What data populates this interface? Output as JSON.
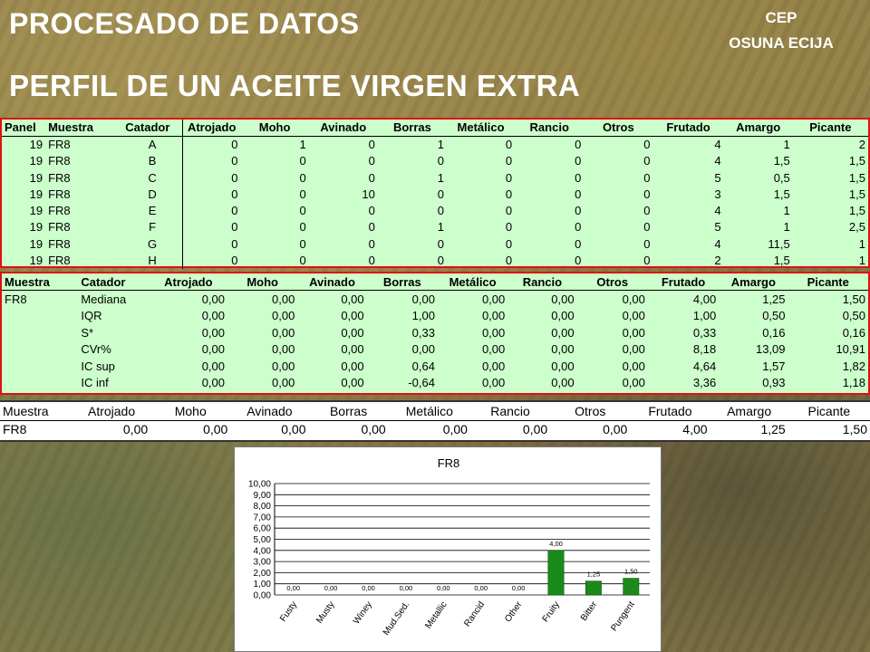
{
  "header": {
    "title": "PROCESADO DE DATOS",
    "subtitle": "PERFIL DE UN ACEITE VIRGEN EXTRA",
    "org_line1": "CEP",
    "org_line2": "OSUNA ECIJA"
  },
  "panel_table": {
    "headers": [
      "Panel",
      "Muestra",
      "Catador",
      "Atrojado",
      "Moho",
      "Avinado",
      "Borras",
      "Metálico",
      "Rancio",
      "Otros",
      "Frutado",
      "Amargo",
      "Picante"
    ],
    "rows": [
      [
        "19",
        "FR8",
        "A",
        "0",
        "1",
        "0",
        "1",
        "0",
        "0",
        "0",
        "4",
        "1",
        "2"
      ],
      [
        "19",
        "FR8",
        "B",
        "0",
        "0",
        "0",
        "0",
        "0",
        "0",
        "0",
        "4",
        "1,5",
        "1,5"
      ],
      [
        "19",
        "FR8",
        "C",
        "0",
        "0",
        "0",
        "1",
        "0",
        "0",
        "0",
        "5",
        "0,5",
        "1,5"
      ],
      [
        "19",
        "FR8",
        "D",
        "0",
        "0",
        "10",
        "0",
        "0",
        "0",
        "0",
        "3",
        "1,5",
        "1,5"
      ],
      [
        "19",
        "FR8",
        "E",
        "0",
        "0",
        "0",
        "0",
        "0",
        "0",
        "0",
        "4",
        "1",
        "1,5"
      ],
      [
        "19",
        "FR8",
        "F",
        "0",
        "0",
        "0",
        "1",
        "0",
        "0",
        "0",
        "5",
        "1",
        "2,5"
      ],
      [
        "19",
        "FR8",
        "G",
        "0",
        "0",
        "0",
        "0",
        "0",
        "0",
        "0",
        "4",
        "11,5",
        "1"
      ],
      [
        "19",
        "FR8",
        "H",
        "0",
        "0",
        "0",
        "0",
        "0",
        "0",
        "0",
        "2",
        "1,5",
        "1"
      ]
    ]
  },
  "stats_table": {
    "headers": [
      "Muestra",
      "Catador",
      "Atrojado",
      "Moho",
      "Avinado",
      "Borras",
      "Metálico",
      "Rancio",
      "Otros",
      "Frutado",
      "Amargo",
      "Picante"
    ],
    "rows": [
      [
        "FR8",
        "Mediana",
        "0,00",
        "0,00",
        "0,00",
        "0,00",
        "0,00",
        "0,00",
        "0,00",
        "4,00",
        "1,25",
        "1,50"
      ],
      [
        "",
        "IQR",
        "0,00",
        "0,00",
        "0,00",
        "1,00",
        "0,00",
        "0,00",
        "0,00",
        "1,00",
        "0,50",
        "0,50"
      ],
      [
        "",
        "S*",
        "0,00",
        "0,00",
        "0,00",
        "0,33",
        "0,00",
        "0,00",
        "0,00",
        "0,33",
        "0,16",
        "0,16"
      ],
      [
        "",
        "CVr%",
        "0,00",
        "0,00",
        "0,00",
        "0,00",
        "0,00",
        "0,00",
        "0,00",
        "8,18",
        "13,09",
        "10,91"
      ],
      [
        "",
        "IC sup",
        "0,00",
        "0,00",
        "0,00",
        "0,64",
        "0,00",
        "0,00",
        "0,00",
        "4,64",
        "1,57",
        "1,82"
      ],
      [
        "",
        "IC inf",
        "0,00",
        "0,00",
        "0,00",
        "-0,64",
        "0,00",
        "0,00",
        "0,00",
        "3,36",
        "0,93",
        "1,18"
      ]
    ]
  },
  "summary_table": {
    "headers": [
      "Muestra",
      "Atrojado",
      "Moho",
      "Avinado",
      "Borras",
      "Metálico",
      "Rancio",
      "Otros",
      "Frutado",
      "Amargo",
      "Picante"
    ],
    "row": [
      "FR8",
      "0,00",
      "0,00",
      "0,00",
      "0,00",
      "0,00",
      "0,00",
      "0,00",
      "4,00",
      "1,25",
      "1,50"
    ]
  },
  "colors": {
    "bar": "#1a8a1a",
    "frame": "#e01010",
    "panel_bg": "#ccffcc"
  },
  "chart_data": {
    "type": "bar",
    "title": "FR8",
    "categories": [
      "Fusty",
      "Musty",
      "Winey",
      "Mud.Sed.",
      "Metallic",
      "Rancid",
      "Other",
      "Fruity",
      "Bitter",
      "Pungent"
    ],
    "values": [
      0,
      0,
      0,
      0,
      0,
      0,
      0,
      4.0,
      1.25,
      1.5
    ],
    "value_labels": [
      "0,00",
      "0,00",
      "0,00",
      "0,00",
      "0,00",
      "0,00",
      "0,00",
      "4,00",
      "1,25",
      "1,50"
    ],
    "yticks": [
      "0,00",
      "1,00",
      "2,00",
      "3,00",
      "4,00",
      "5,00",
      "6,00",
      "7,00",
      "8,00",
      "9,00",
      "10,00"
    ],
    "ylim": [
      0,
      10
    ],
    "grid": true
  }
}
